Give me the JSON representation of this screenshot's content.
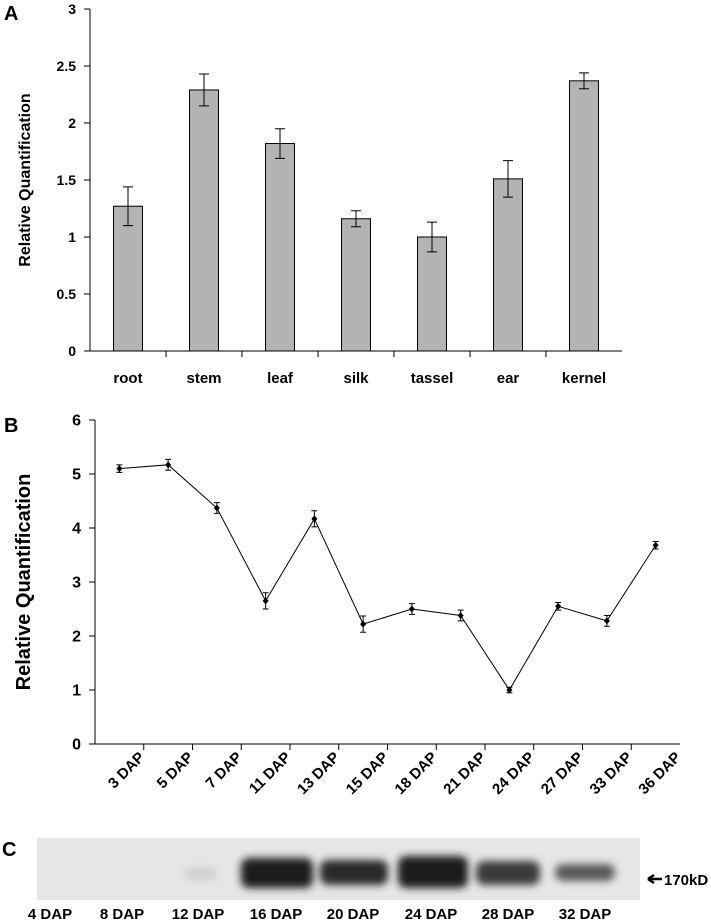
{
  "chart_data": [
    {
      "type": "bar",
      "panel_label": "A",
      "y_label": "Relative Quantification",
      "categories": [
        "root",
        "stem",
        "leaf",
        "silk",
        "tassel",
        "ear",
        "kernel"
      ],
      "values": [
        1.27,
        2.29,
        1.82,
        1.16,
        1.0,
        1.51,
        2.37
      ],
      "errors": [
        0.17,
        0.14,
        0.13,
        0.07,
        0.13,
        0.16,
        0.07
      ],
      "color": "#b3b3b3",
      "ylim": [
        0,
        3
      ],
      "yticks": [
        0,
        0.5,
        1,
        1.5,
        2,
        2.5,
        3
      ]
    },
    {
      "type": "line",
      "panel_label": "B",
      "y_label": "Relative Quantification",
      "categories": [
        "3 DAP",
        "5 DAP",
        "7 DAP",
        "11 DAP",
        "13 DAP",
        "15 DAP",
        "18 DAP",
        "21 DAP",
        "24 DAP",
        "27 DAP",
        "33 DAP",
        "36 DAP"
      ],
      "values": [
        5.1,
        5.17,
        4.37,
        2.65,
        4.17,
        2.22,
        2.5,
        2.38,
        1.0,
        2.55,
        2.28,
        3.68
      ],
      "errors": [
        0.07,
        0.1,
        0.1,
        0.15,
        0.15,
        0.15,
        0.1,
        0.1,
        0.05,
        0.07,
        0.1,
        0.07
      ],
      "color": "#000000",
      "ylim": [
        0,
        6
      ],
      "yticks": [
        0,
        1,
        2,
        3,
        4,
        5,
        6
      ]
    }
  ],
  "blot": {
    "panel_label": "C",
    "lanes": [
      "4 DAP",
      "8 DAP",
      "12 DAP",
      "16 DAP",
      "20 DAP",
      "24 DAP",
      "28 DAP",
      "32 DAP"
    ],
    "marker": "170kD"
  }
}
